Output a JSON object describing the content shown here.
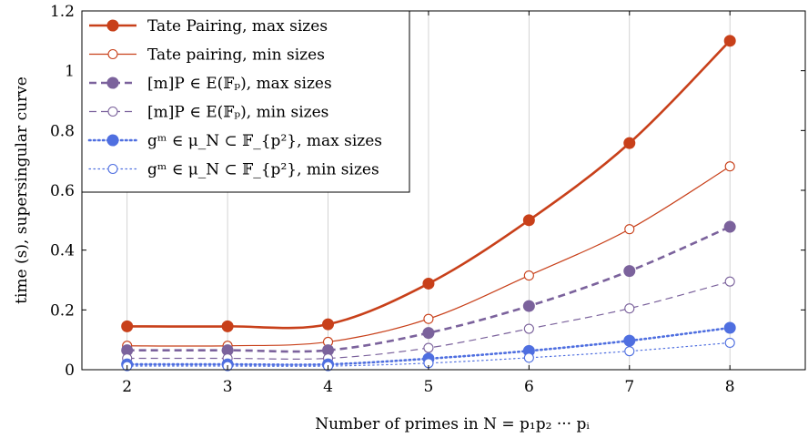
{
  "chart_data": {
    "type": "line",
    "xlabel": "Number of primes in N = p₁p₂ ··· pᵢ",
    "ylabel": "time (s), supersingular curve",
    "xlim": [
      1.55,
      8.75
    ],
    "ylim": [
      0,
      1.2
    ],
    "xticks": [
      2,
      3,
      4,
      5,
      6,
      7,
      8
    ],
    "yticks": [
      0,
      0.2,
      0.4,
      0.6,
      0.8,
      1,
      1.2
    ],
    "ytick_labels": [
      "0",
      "0.2",
      "0.4",
      "0.6",
      "0.8",
      "1",
      "1.2"
    ],
    "legend_position": "top-left",
    "grid": "vertical",
    "x": [
      2,
      3,
      4,
      5,
      6,
      7,
      8
    ],
    "series": [
      {
        "name": "Tate Pairing, max sizes",
        "values": [
          0.145,
          0.145,
          0.152,
          0.288,
          0.5,
          0.758,
          1.1
        ],
        "color": "#c8401a",
        "dash": "solid",
        "marker": "filled",
        "width": 2.6
      },
      {
        "name": "Tate pairing, min sizes",
        "values": [
          0.08,
          0.08,
          0.093,
          0.17,
          0.315,
          0.47,
          0.68
        ],
        "color": "#c8401a",
        "dash": "solid",
        "marker": "open",
        "width": 1.2
      },
      {
        "name": "[m]P ∈ E(𝔽ₚ), max sizes",
        "values": [
          0.065,
          0.065,
          0.065,
          0.123,
          0.213,
          0.33,
          0.478
        ],
        "color": "#7b629c",
        "dash": "dashed",
        "marker": "filled",
        "width": 2.6
      },
      {
        "name": "[m]P ∈ E(𝔽ₚ), min sizes",
        "values": [
          0.038,
          0.038,
          0.038,
          0.073,
          0.137,
          0.205,
          0.295
        ],
        "color": "#7b629c",
        "dash": "dashed",
        "marker": "open",
        "width": 1.2
      },
      {
        "name": "gᵐ ∈ μ_N ⊂ 𝔽_{p²}, max sizes",
        "values": [
          0.018,
          0.018,
          0.018,
          0.037,
          0.063,
          0.097,
          0.14
        ],
        "color": "#4f6fe0",
        "dash": "dotted",
        "marker": "filled",
        "width": 2.6
      },
      {
        "name": "gᵐ ∈ μ_N ⊂ 𝔽_{p²}, min sizes",
        "values": [
          0.012,
          0.012,
          0.012,
          0.022,
          0.04,
          0.062,
          0.09
        ],
        "color": "#4f6fe0",
        "dash": "dotted",
        "marker": "open",
        "width": 1.2
      }
    ]
  }
}
